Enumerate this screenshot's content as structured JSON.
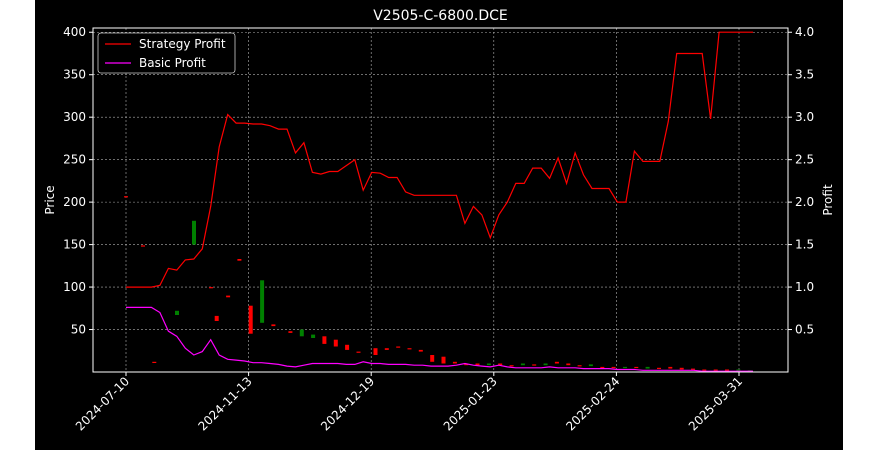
{
  "chart_data": {
    "type": "line",
    "title": "V2505-C-6800.DCE",
    "ylabel_left": "Price",
    "ylabel_right": "Profit",
    "xlabel": "",
    "grid": true,
    "legend": {
      "placement": "top-left",
      "entries": [
        "Strategy Profit",
        "Basic Profit"
      ]
    },
    "x_ticks": [
      "2024-07-10",
      "2024-11-13",
      "2024-12-19",
      "2025-01-23",
      "2025-02-24",
      "2025-03-31"
    ],
    "y_left_ticks": [
      50,
      100,
      150,
      200,
      250,
      300,
      350,
      400
    ],
    "y_right_ticks": [
      "0.5",
      "1.0",
      "1.5",
      "2.0",
      "2.5",
      "3.0",
      "3.5",
      "4.0"
    ],
    "y_left_range": [
      0,
      405
    ],
    "y_right_range": [
      0,
      4.05
    ],
    "colors": {
      "strategy": "#ff0000",
      "basic": "#ff00ff",
      "up": "#008000",
      "down": "#ff0000",
      "grid": "#b0b0b0"
    },
    "series": [
      {
        "name": "Strategy Profit",
        "axis": "right",
        "values": [
          1.0,
          1.0,
          1.0,
          1.0,
          1.02,
          1.22,
          1.2,
          1.32,
          1.33,
          1.45,
          1.95,
          2.65,
          3.03,
          2.93,
          2.93,
          2.92,
          2.92,
          2.9,
          2.86,
          2.86,
          2.58,
          2.7,
          2.35,
          2.33,
          2.36,
          2.36,
          2.43,
          2.5,
          2.14,
          2.35,
          2.34,
          2.29,
          2.29,
          2.12,
          2.08,
          2.08,
          2.08,
          2.08,
          2.08,
          2.08,
          1.75,
          1.95,
          1.85,
          1.58,
          1.85,
          2.0,
          2.22,
          2.22,
          2.4,
          2.4,
          2.28,
          2.52,
          2.22,
          2.58,
          2.32,
          2.16,
          2.16,
          2.16,
          2.0,
          2.0,
          2.6,
          2.48,
          2.48,
          2.48,
          2.95,
          3.75,
          3.75,
          3.75,
          3.75,
          2.98,
          4.0,
          4.0,
          4.0,
          4.0,
          4.0
        ]
      },
      {
        "name": "Basic Profit",
        "axis": "right",
        "values": [
          0.76,
          0.76,
          0.76,
          0.76,
          0.7,
          0.48,
          0.42,
          0.28,
          0.2,
          0.24,
          0.38,
          0.2,
          0.15,
          0.14,
          0.13,
          0.11,
          0.11,
          0.1,
          0.09,
          0.07,
          0.06,
          0.08,
          0.1,
          0.1,
          0.1,
          0.1,
          0.09,
          0.09,
          0.12,
          0.1,
          0.1,
          0.09,
          0.09,
          0.09,
          0.08,
          0.08,
          0.07,
          0.07,
          0.07,
          0.08,
          0.1,
          0.08,
          0.07,
          0.06,
          0.08,
          0.06,
          0.05,
          0.05,
          0.05,
          0.05,
          0.06,
          0.05,
          0.05,
          0.05,
          0.04,
          0.04,
          0.04,
          0.04,
          0.03,
          0.03,
          0.03,
          0.02,
          0.02,
          0.02,
          0.02,
          0.02,
          0.02,
          0.02,
          0.01,
          0.01,
          0.01,
          0.01,
          0.01,
          0.01,
          0.01
        ]
      },
      {
        "name": "Price (candles)",
        "axis": "left",
        "candles": [
          {
            "i": 0,
            "o": 207,
            "c": 206
          },
          {
            "i": 3,
            "o": 149,
            "c": 148
          },
          {
            "i": 5,
            "o": 12,
            "c": 11
          },
          {
            "i": 9,
            "o": 67,
            "c": 72
          },
          {
            "i": 12,
            "o": 150,
            "c": 178
          },
          {
            "i": 15,
            "o": 100,
            "c": 99
          },
          {
            "i": 16,
            "o": 66,
            "c": 60
          },
          {
            "i": 18,
            "o": 90,
            "c": 88
          },
          {
            "i": 20,
            "o": 133,
            "c": 131
          },
          {
            "i": 22,
            "o": 78,
            "c": 45
          },
          {
            "i": 24,
            "o": 58,
            "c": 108
          },
          {
            "i": 26,
            "o": 56,
            "c": 54
          },
          {
            "i": 29,
            "o": 48,
            "c": 46
          },
          {
            "i": 31,
            "o": 42,
            "c": 50
          },
          {
            "i": 33,
            "o": 40,
            "c": 44
          },
          {
            "i": 35,
            "o": 42,
            "c": 33
          },
          {
            "i": 37,
            "o": 38,
            "c": 30
          },
          {
            "i": 39,
            "o": 32,
            "c": 26
          },
          {
            "i": 41,
            "o": 24,
            "c": 23
          },
          {
            "i": 44,
            "o": 28,
            "c": 20
          },
          {
            "i": 46,
            "o": 28,
            "c": 26
          },
          {
            "i": 48,
            "o": 30,
            "c": 29
          },
          {
            "i": 50,
            "o": 28,
            "c": 27
          },
          {
            "i": 52,
            "o": 26,
            "c": 24
          },
          {
            "i": 54,
            "o": 20,
            "c": 12
          },
          {
            "i": 56,
            "o": 18,
            "c": 10
          },
          {
            "i": 58,
            "o": 12,
            "c": 10
          },
          {
            "i": 60,
            "o": 10,
            "c": 8
          },
          {
            "i": 62,
            "o": 10,
            "c": 8
          },
          {
            "i": 64,
            "o": 8,
            "c": 10
          },
          {
            "i": 66,
            "o": 10,
            "c": 8
          },
          {
            "i": 68,
            "o": 8,
            "c": 7
          },
          {
            "i": 70,
            "o": 8,
            "c": 10
          },
          {
            "i": 72,
            "o": 9,
            "c": 8
          },
          {
            "i": 74,
            "o": 8,
            "c": 10
          },
          {
            "i": 76,
            "o": 12,
            "c": 10
          },
          {
            "i": 78,
            "o": 10,
            "c": 8
          },
          {
            "i": 80,
            "o": 8,
            "c": 7
          },
          {
            "i": 82,
            "o": 7,
            "c": 9
          },
          {
            "i": 84,
            "o": 6,
            "c": 5
          },
          {
            "i": 86,
            "o": 6,
            "c": 5
          },
          {
            "i": 88,
            "o": 5,
            "c": 6
          },
          {
            "i": 90,
            "o": 6,
            "c": 5
          },
          {
            "i": 92,
            "o": 4,
            "c": 6
          },
          {
            "i": 94,
            "o": 5,
            "c": 4
          },
          {
            "i": 96,
            "o": 6,
            "c": 4
          },
          {
            "i": 98,
            "o": 5,
            "c": 3
          },
          {
            "i": 100,
            "o": 4,
            "c": 3
          },
          {
            "i": 102,
            "o": 3,
            "c": 2
          },
          {
            "i": 104,
            "o": 3,
            "c": 2
          },
          {
            "i": 106,
            "o": 3,
            "c": 2
          },
          {
            "i": 108,
            "o": 2,
            "c": 3
          },
          {
            "i": 110,
            "o": 2,
            "c": 2
          }
        ]
      }
    ]
  }
}
